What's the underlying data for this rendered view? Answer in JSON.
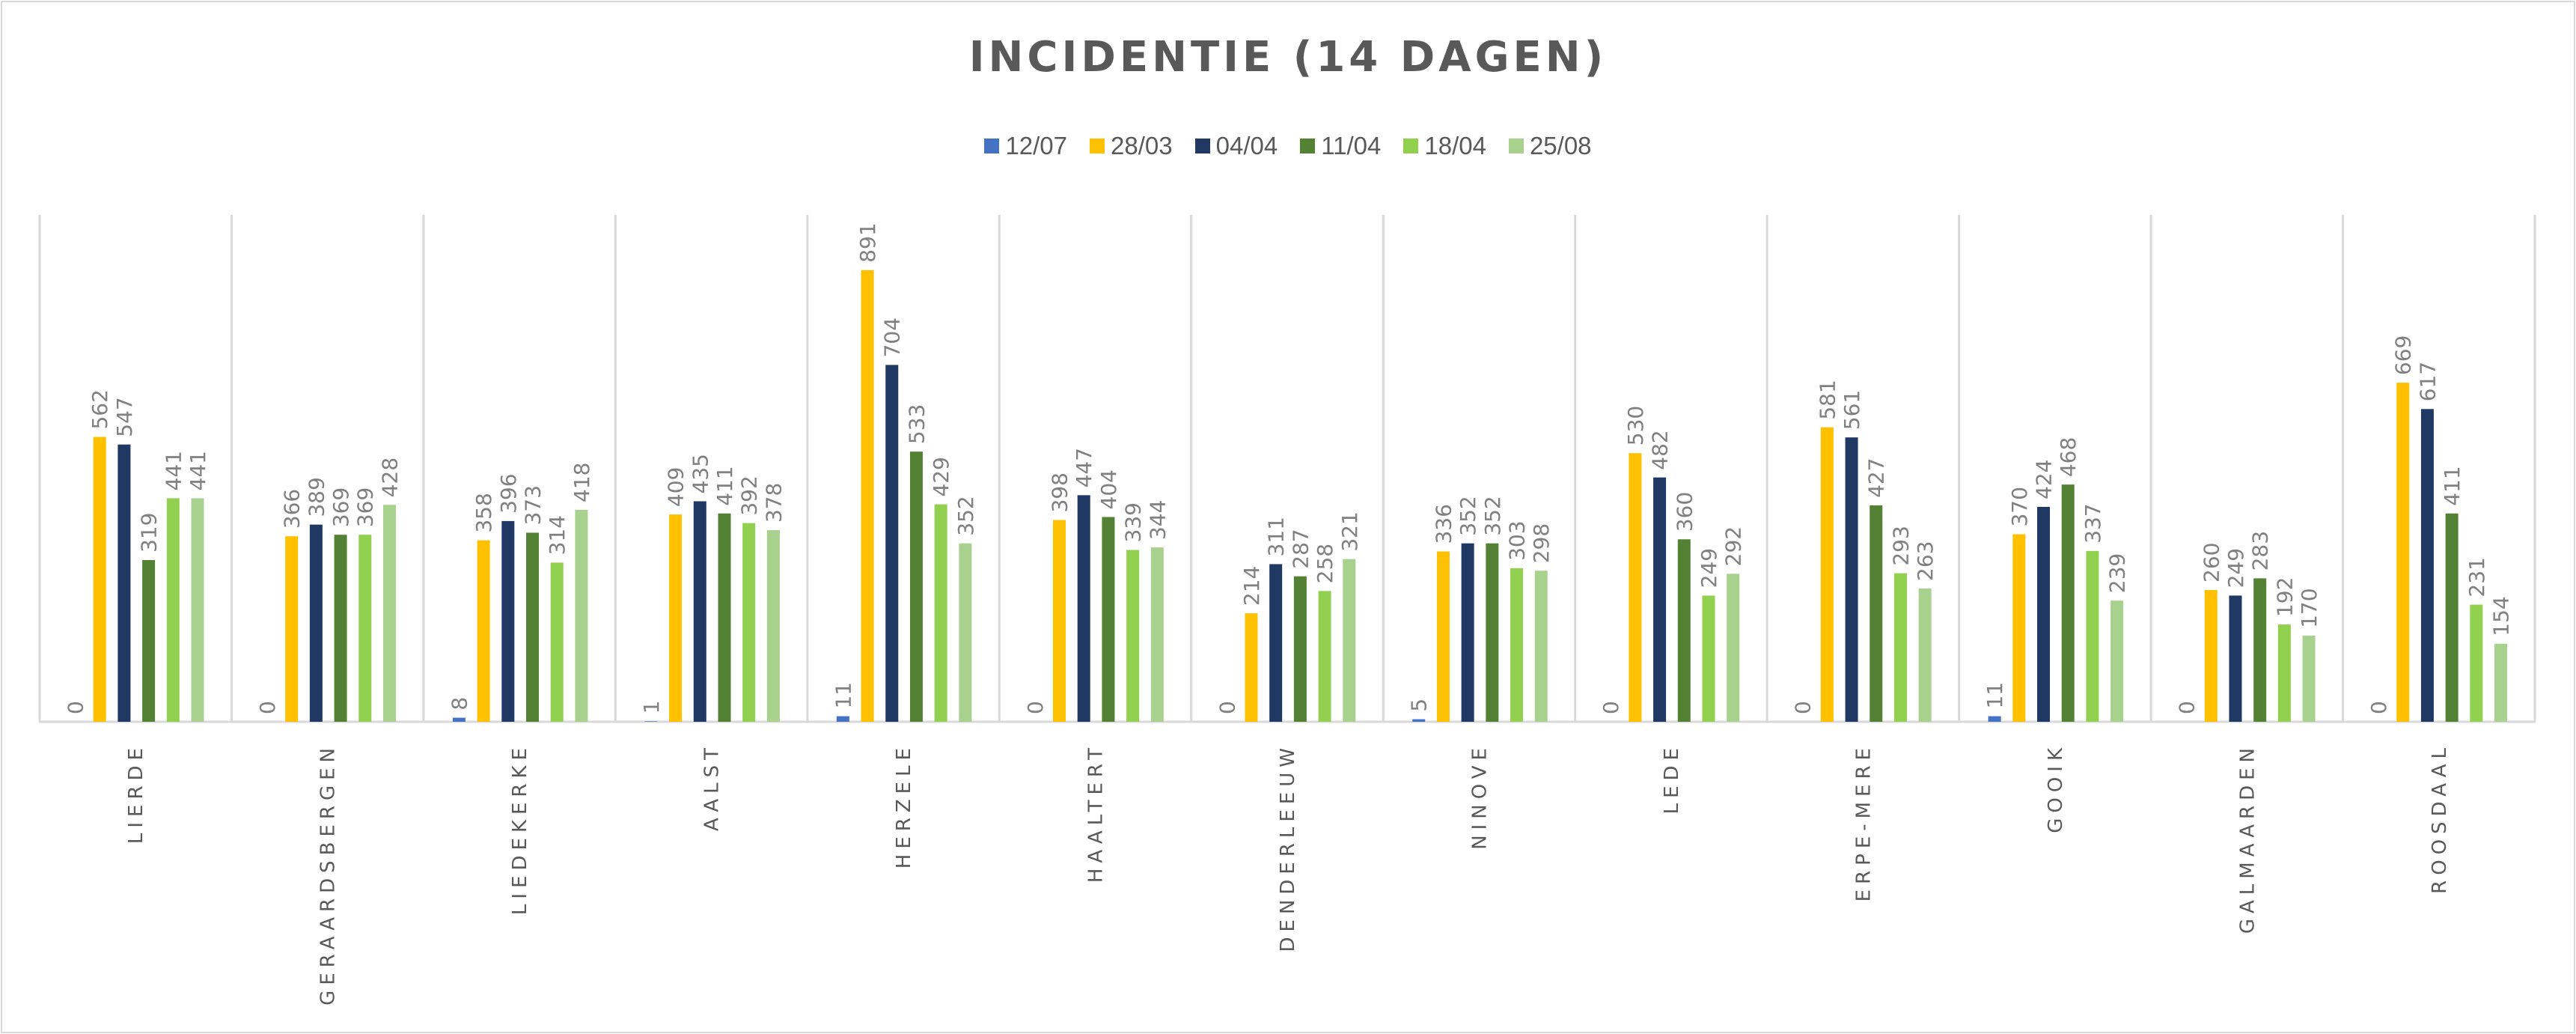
{
  "chart_data": {
    "type": "bar",
    "title": "INCIDENTIE (14 DAGEN)",
    "xlabel": "",
    "ylabel": "",
    "ylim": [
      0,
      1000
    ],
    "grid": "vertical category separators",
    "legend_position": "top",
    "categories": [
      "LIERDE",
      "GERAARDSBERGEN",
      "LIEDEKERKE",
      "AALST",
      "HERZELE",
      "HAALTERT",
      "DENDERLEEUW",
      "NINOVE",
      "LEDE",
      "ERPE-MERE",
      "GOOIK",
      "GALMAARDEN",
      "ROOSDAAL"
    ],
    "series": [
      {
        "name": "12/07",
        "color": "#4472C4",
        "values": [
          0,
          0,
          8,
          1,
          11,
          0,
          0,
          5,
          0,
          0,
          11,
          0,
          0
        ]
      },
      {
        "name": "28/03",
        "color": "#FFC000",
        "values": [
          562,
          366,
          358,
          409,
          891,
          398,
          214,
          336,
          530,
          581,
          370,
          260,
          669
        ]
      },
      {
        "name": "04/04",
        "color": "#203864",
        "values": [
          547,
          389,
          396,
          435,
          704,
          447,
          311,
          352,
          482,
          561,
          424,
          249,
          617
        ]
      },
      {
        "name": "11/04",
        "color": "#548235",
        "values": [
          319,
          369,
          373,
          411,
          533,
          404,
          287,
          352,
          360,
          427,
          468,
          283,
          411
        ]
      },
      {
        "name": "18/04",
        "color": "#92D050",
        "values": [
          441,
          369,
          314,
          392,
          429,
          339,
          258,
          303,
          249,
          293,
          337,
          192,
          231
        ]
      },
      {
        "name": "25/08",
        "color": "#A9D18E",
        "values": [
          441,
          428,
          418,
          378,
          352,
          344,
          321,
          298,
          292,
          263,
          239,
          170,
          154
        ]
      }
    ]
  }
}
